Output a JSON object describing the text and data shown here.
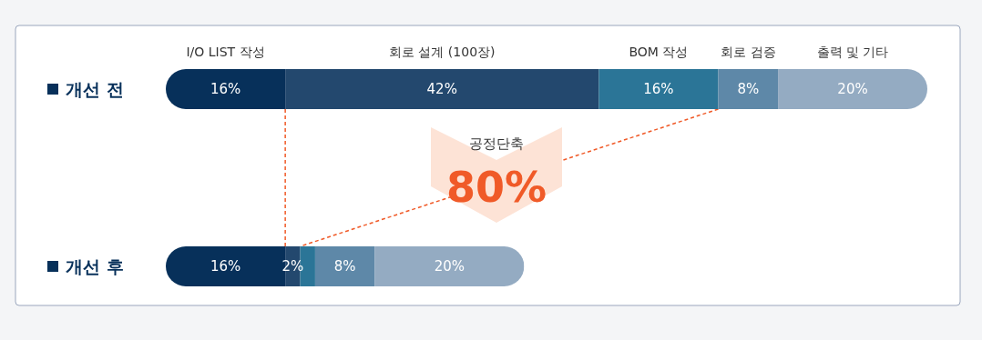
{
  "chart_data": {
    "type": "bar",
    "orientation": "horizontal",
    "stacked": true,
    "legend": false,
    "categories": [
      "개선 전",
      "개선 후"
    ],
    "series": [
      {
        "name": "I/O LIST 작성",
        "color": "#07305a",
        "values": [
          16,
          16
        ],
        "value_labels": [
          "16%",
          "16%"
        ]
      },
      {
        "name": "회로 설계 (100장)",
        "color": "#23486e",
        "values": [
          42,
          2
        ],
        "value_labels": [
          "42%",
          "2%"
        ]
      },
      {
        "name": "BOM 작성",
        "color": "#2b7597",
        "values": [
          16,
          2
        ],
        "value_labels": [
          "16%",
          null
        ]
      },
      {
        "name": "회로 검증",
        "color": "#5e88a8",
        "values": [
          8,
          8
        ],
        "value_labels": [
          "8%",
          "8%"
        ]
      },
      {
        "name": "출력 및 기타",
        "color": "#94abc2",
        "values": [
          20,
          20
        ],
        "value_labels": [
          "20%",
          "20%"
        ]
      }
    ],
    "annotations": [
      "공정단축",
      "80%"
    ]
  }
}
